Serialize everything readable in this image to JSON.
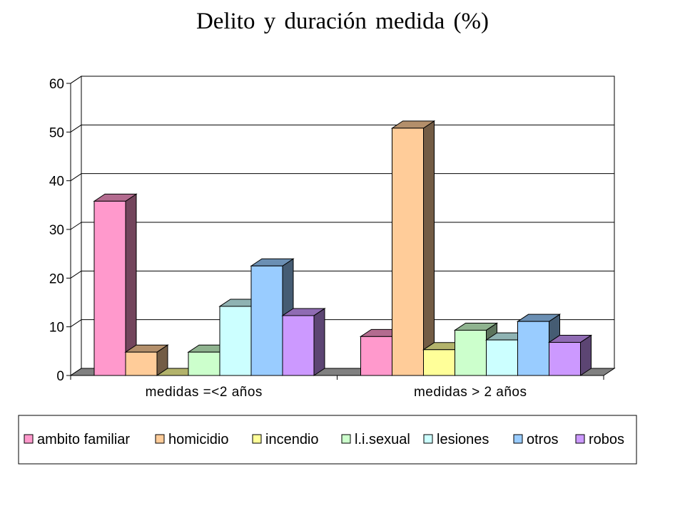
{
  "chart_data": {
    "type": "bar",
    "title": "Delito y duración medida (%)",
    "xlabel": "",
    "ylabel": "",
    "categories": [
      "medidas =<2 años",
      "medidas > 2 años"
    ],
    "ylim": [
      0,
      60
    ],
    "yticks": [
      0,
      10,
      20,
      30,
      40,
      50,
      60
    ],
    "grid": true,
    "legend_position": "bottom",
    "style": "3d-clustered",
    "series": [
      {
        "name": "ambito familiar",
        "values": [
          35.8,
          8.0
        ],
        "color": "#FF99CC"
      },
      {
        "name": "homicidio",
        "values": [
          4.8,
          50.8
        ],
        "color": "#FFCC99"
      },
      {
        "name": "incendio",
        "values": [
          0,
          5.3
        ],
        "color": "#FFFF99"
      },
      {
        "name": "l.i.sexual",
        "values": [
          4.8,
          9.3
        ],
        "color": "#CCFFCC"
      },
      {
        "name": "lesiones",
        "values": [
          14.2,
          7.3
        ],
        "color": "#CCFFFF"
      },
      {
        "name": "otros",
        "values": [
          22.5,
          11.1
        ],
        "color": "#99CCFF"
      },
      {
        "name": "robos",
        "values": [
          12.3,
          6.8
        ],
        "color": "#CC99FF"
      }
    ]
  }
}
